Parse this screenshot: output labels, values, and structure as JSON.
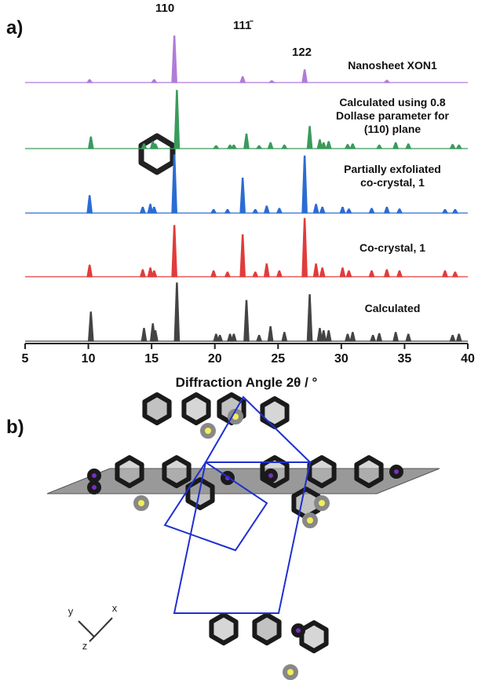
{
  "chart_data": {
    "type": "stacked-pattern",
    "panel_label": "a)",
    "xlabel": "Diffraction Angle 2θ / °",
    "xlim": [
      5,
      40
    ],
    "xticks": [
      5,
      10,
      15,
      20,
      25,
      30,
      35,
      40
    ],
    "annotations": [
      "110",
      "111̄",
      "122"
    ],
    "series": [
      {
        "name": "Nanosheet XON1",
        "color": "#b07cd8",
        "x": [
          10.1,
          15.2,
          16.8,
          22.2,
          24.5,
          27.1,
          33.6
        ],
        "values": [
          0.05,
          0.05,
          0.8,
          0.1,
          0.03,
          0.22,
          0.04
        ]
      },
      {
        "name": "Calculated using 0.8\nDollase parameter for\n(110) plane",
        "color": "#3a9a5c",
        "x": [
          10.2,
          14.4,
          15.1,
          15.3,
          17.0,
          20.1,
          21.2,
          21.5,
          22.5,
          23.5,
          24.4,
          25.5,
          27.5,
          28.3,
          28.6,
          29.0,
          30.5,
          30.9,
          33.0,
          34.3,
          35.3,
          38.8,
          39.3
        ],
        "values": [
          0.2,
          0.08,
          0.12,
          0.08,
          1.0,
          0.05,
          0.06,
          0.06,
          0.25,
          0.05,
          0.1,
          0.06,
          0.38,
          0.15,
          0.1,
          0.12,
          0.07,
          0.08,
          0.06,
          0.1,
          0.08,
          0.07,
          0.06
        ]
      },
      {
        "name": "Partially exfoliated\nco-crystal, 1",
        "color": "#2a6cd4",
        "x": [
          10.1,
          14.3,
          14.9,
          15.2,
          16.8,
          19.9,
          21.0,
          22.2,
          23.2,
          24.1,
          25.1,
          27.1,
          28.0,
          28.5,
          30.1,
          30.6,
          32.4,
          33.6,
          34.6,
          38.2,
          39.0
        ],
        "values": [
          0.3,
          0.1,
          0.15,
          0.1,
          1.0,
          0.06,
          0.06,
          0.6,
          0.06,
          0.12,
          0.08,
          0.98,
          0.15,
          0.1,
          0.1,
          0.07,
          0.08,
          0.1,
          0.07,
          0.06,
          0.06
        ]
      },
      {
        "name": "Co-crystal, 1",
        "color": "#e23b3b",
        "x": [
          10.1,
          14.3,
          14.9,
          15.2,
          16.8,
          19.9,
          21.0,
          22.2,
          23.2,
          24.1,
          25.1,
          27.1,
          28.0,
          28.5,
          30.1,
          30.6,
          32.4,
          33.6,
          34.6,
          38.2,
          39.0
        ],
        "values": [
          0.2,
          0.12,
          0.15,
          0.1,
          0.88,
          0.1,
          0.08,
          0.72,
          0.08,
          0.22,
          0.1,
          1.0,
          0.22,
          0.15,
          0.15,
          0.1,
          0.1,
          0.12,
          0.1,
          0.1,
          0.08
        ]
      },
      {
        "name": "Calculated",
        "color": "#444444",
        "x": [
          10.2,
          14.4,
          15.1,
          15.3,
          17.0,
          20.1,
          20.4,
          21.2,
          21.5,
          22.5,
          23.5,
          24.4,
          25.5,
          27.5,
          28.3,
          28.6,
          29.0,
          30.5,
          30.9,
          32.5,
          33.0,
          34.3,
          35.3,
          38.8,
          39.3
        ],
        "values": [
          0.5,
          0.22,
          0.3,
          0.18,
          1.0,
          0.12,
          0.1,
          0.12,
          0.12,
          0.7,
          0.1,
          0.25,
          0.15,
          0.8,
          0.22,
          0.18,
          0.18,
          0.12,
          0.15,
          0.1,
          0.13,
          0.15,
          0.12,
          0.1,
          0.12
        ]
      }
    ]
  },
  "structure": {
    "panel_label": "b)",
    "axes": [
      "y",
      "x",
      "z"
    ]
  }
}
